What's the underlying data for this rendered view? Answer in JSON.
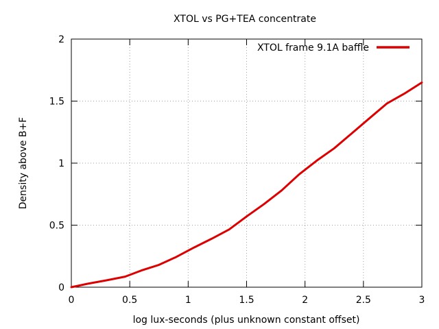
{
  "chart_data": {
    "type": "line",
    "title": "XTOL vs PG+TEA concentrate",
    "xlabel": "log lux-seconds (plus unknown constant offset)",
    "ylabel": "Density above B+F",
    "xlim": [
      0,
      3
    ],
    "ylim": [
      0,
      2
    ],
    "xticks": [
      0,
      0.5,
      1,
      1.5,
      2,
      2.5,
      3
    ],
    "xtick_labels": [
      "0",
      "0.5",
      "1",
      "1.5",
      "2",
      "2.5",
      "3"
    ],
    "yticks": [
      0,
      0.5,
      1,
      1.5,
      2
    ],
    "ytick_labels": [
      "0",
      "0.5",
      "1",
      "1.5",
      "2"
    ],
    "grid": true,
    "legend_position": "top-right",
    "series": [
      {
        "name": "XTOL frame 9.1A baffle",
        "color": "#dd0000",
        "x": [
          0,
          0.15,
          0.3,
          0.46,
          0.6,
          0.75,
          0.9,
          1.05,
          1.2,
          1.35,
          1.5,
          1.65,
          1.8,
          1.95,
          2.1,
          2.25,
          2.4,
          2.55,
          2.7,
          2.85,
          3.0
        ],
        "y": [
          0,
          0.03,
          0.055,
          0.085,
          0.135,
          0.18,
          0.245,
          0.32,
          0.39,
          0.465,
          0.57,
          0.67,
          0.78,
          0.91,
          1.02,
          1.12,
          1.24,
          1.36,
          1.48,
          1.56,
          1.65
        ]
      }
    ]
  }
}
